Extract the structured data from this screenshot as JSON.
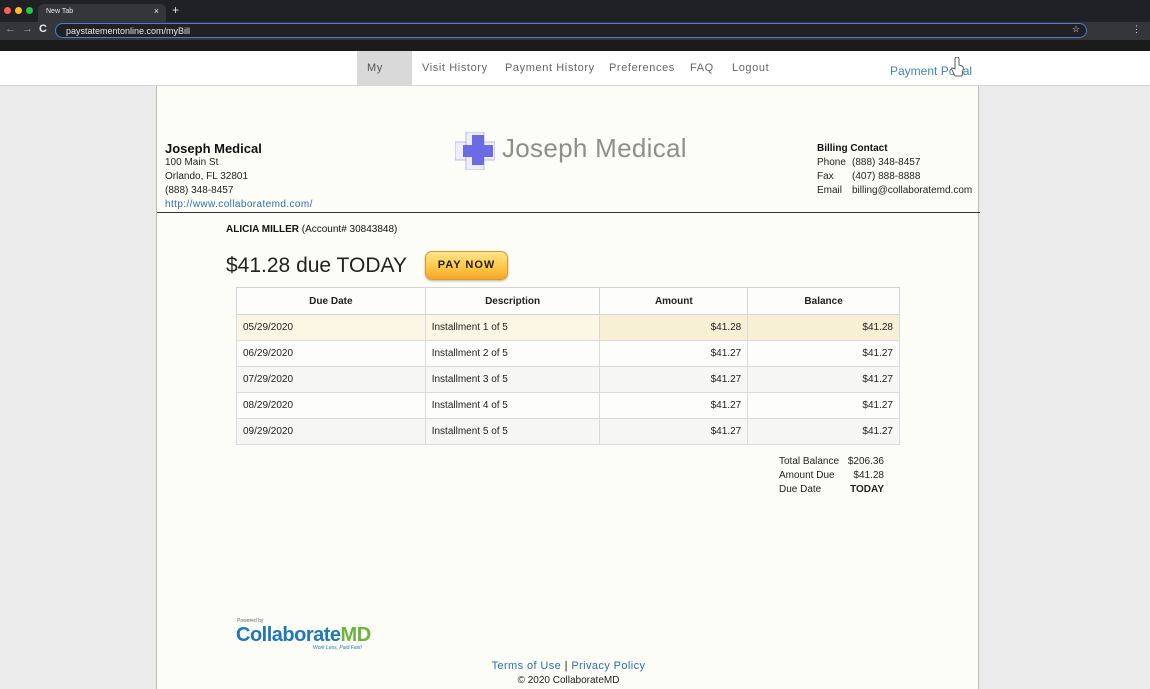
{
  "browser": {
    "tab_title": "New Tab",
    "tab_close": "×",
    "new_tab": "+",
    "back": "←",
    "forward": "→",
    "reload": "C",
    "url": "paystatementonline.com/myBill",
    "bookmark_star": "☆",
    "menu": "⋮",
    "traffic_colors": [
      "#ff5f57",
      "#febc2e",
      "#28c840"
    ]
  },
  "nav": {
    "items": [
      "My Bill",
      "Visit History",
      "Payment History",
      "Preferences",
      "FAQ",
      "Logout"
    ],
    "active": "My Bill",
    "portal_label": "Payment Portal"
  },
  "practice": {
    "name": "Joseph Medical",
    "address1": "100 Main St",
    "address2": "Orlando, FL 32801",
    "phone": "(888) 348-8457",
    "website": "http://www.collaboratemd.com/",
    "logo_text": "Joseph Medical",
    "logo_color": "#6b6be6"
  },
  "billing": {
    "heading": "Billing Contact",
    "phone_label": "Phone",
    "phone": "(888) 348-8457",
    "fax_label": "Fax",
    "fax": "(407) 888-8888",
    "email_label": "Email",
    "email": "billing@collaboratemd.com"
  },
  "patient": {
    "name": "ALICIA MILLER",
    "account": "(Account# 30843848)"
  },
  "due": {
    "headline": "$41.28 due TODAY",
    "pay_button": "PAY NOW"
  },
  "schedule": {
    "headers": [
      "Due Date",
      "Description",
      "Amount",
      "Balance"
    ],
    "rows": [
      [
        "05/29/2020",
        "Installment 1 of 5",
        "$41.28",
        "$41.28"
      ],
      [
        "06/29/2020",
        "Installment 2 of 5",
        "$41.27",
        "$41.27"
      ],
      [
        "07/29/2020",
        "Installment 3 of 5",
        "$41.27",
        "$41.27"
      ],
      [
        "08/29/2020",
        "Installment 4 of 5",
        "$41.27",
        "$41.27"
      ],
      [
        "09/29/2020",
        "Installment 5 of 5",
        "$41.27",
        "$41.27"
      ]
    ]
  },
  "totals": {
    "total_balance_label": "Total Balance",
    "total_balance": "$206.36",
    "amount_due_label": "Amount Due",
    "amount_due": "$41.28",
    "due_date_label": "Due Date",
    "due_date": "TODAY"
  },
  "footer": {
    "powered_by": "Powered by",
    "brand_main": "Collaborate",
    "brand_md": "MD",
    "brand_tagline": "Work Less, Paid Fast!",
    "terms": "Terms of Use",
    "separator": "|",
    "privacy": "Privacy Policy",
    "copyright": "© 2020 CollaborateMD"
  }
}
